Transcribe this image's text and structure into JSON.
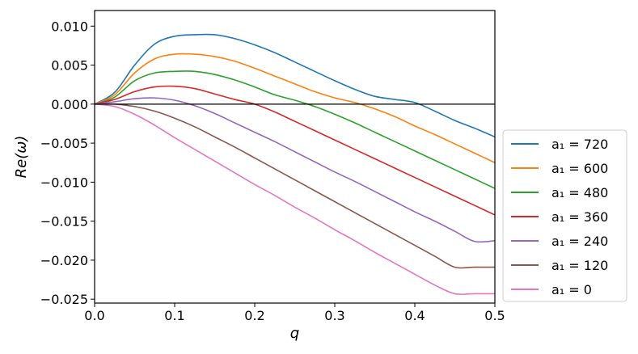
{
  "chart_data": {
    "type": "line",
    "title": "",
    "xlabel": "q",
    "ylabel": "Re(ω)",
    "xlim": [
      0.0,
      0.5
    ],
    "ylim": [
      -0.0255,
      0.012
    ],
    "xticks": [
      "0.0",
      "0.1",
      "0.2",
      "0.3",
      "0.4",
      "0.5"
    ],
    "xtick_values": [
      0.0,
      0.1,
      0.2,
      0.3,
      0.4,
      0.5
    ],
    "yticks": [
      "0.010",
      "0.005",
      "0.000",
      "−0.005",
      "−0.010",
      "−0.015",
      "−0.020",
      "−0.025"
    ],
    "ytick_values": [
      0.01,
      0.005,
      0.0,
      -0.005,
      -0.01,
      -0.015,
      -0.02,
      -0.025
    ],
    "grid": false,
    "legend_position": "outside-right",
    "reference_line": 0.0,
    "x": [
      0.0,
      0.025,
      0.05,
      0.075,
      0.1,
      0.125,
      0.15,
      0.175,
      0.2,
      0.225,
      0.25,
      0.275,
      0.3,
      0.325,
      0.35,
      0.375,
      0.4,
      0.425,
      0.45,
      0.475,
      0.5
    ],
    "series": [
      {
        "name": "a₁ = 720",
        "color": "#1f77b4",
        "values": [
          0.0,
          0.0015,
          0.005,
          0.0077,
          0.0087,
          0.0089,
          0.0089,
          0.0084,
          0.0076,
          0.0066,
          0.0054,
          0.0042,
          0.003,
          0.0019,
          0.001,
          0.0006,
          0.0002,
          -0.0009,
          -0.0021,
          -0.0031,
          -0.0042
        ]
      },
      {
        "name": "a₁ = 600",
        "color": "#ff7f0e",
        "values": [
          0.0,
          0.0012,
          0.004,
          0.0058,
          0.0064,
          0.0064,
          0.0061,
          0.0055,
          0.0046,
          0.0036,
          0.0026,
          0.0016,
          0.0008,
          0.0002,
          -0.0006,
          -0.0016,
          -0.0028,
          -0.0039,
          -0.0051,
          -0.0063,
          -0.0075
        ]
      },
      {
        "name": "a₁ = 480",
        "color": "#2ca02c",
        "values": [
          0.0,
          0.0009,
          0.003,
          0.004,
          0.0042,
          0.0042,
          0.0038,
          0.0031,
          0.0022,
          0.0012,
          0.0005,
          -0.0003,
          -0.0013,
          -0.0024,
          -0.0036,
          -0.0048,
          -0.006,
          -0.0072,
          -0.0084,
          -0.0096,
          -0.0108
        ]
      },
      {
        "name": "a₁ = 360",
        "color": "#d62728",
        "values": [
          0.0,
          0.0006,
          0.0016,
          0.0022,
          0.0023,
          0.002,
          0.0013,
          0.0006,
          0.0,
          -0.001,
          -0.0022,
          -0.0034,
          -0.0046,
          -0.0058,
          -0.007,
          -0.0082,
          -0.0094,
          -0.0106,
          -0.0118,
          -0.013,
          -0.0142
        ]
      },
      {
        "name": "a₁ = 240",
        "color": "#9467bd",
        "values": [
          0.0,
          0.0003,
          0.0007,
          0.0008,
          0.0005,
          -0.0002,
          -0.0012,
          -0.0024,
          -0.0036,
          -0.0048,
          -0.0061,
          -0.0074,
          -0.0087,
          -0.0099,
          -0.0112,
          -0.0125,
          -0.0138,
          -0.015,
          -0.0163,
          -0.0176,
          -0.0175
        ]
      },
      {
        "name": "a₁ = 120",
        "color": "#8c564b",
        "values": [
          0.0,
          0.0,
          -0.0003,
          -0.0009,
          -0.0018,
          -0.0029,
          -0.0042,
          -0.0055,
          -0.0069,
          -0.0083,
          -0.0097,
          -0.0111,
          -0.0125,
          -0.0139,
          -0.0153,
          -0.0167,
          -0.0181,
          -0.0195,
          -0.0209,
          -0.0209,
          -0.0209
        ]
      },
      {
        "name": "a₁ = 0",
        "color": "#e377c2",
        "values": [
          0.0,
          -0.0003,
          -0.0013,
          -0.0027,
          -0.0043,
          -0.0058,
          -0.0073,
          -0.0088,
          -0.0103,
          -0.0117,
          -0.0132,
          -0.0146,
          -0.0161,
          -0.0175,
          -0.019,
          -0.0204,
          -0.0218,
          -0.0232,
          -0.0243,
          -0.0243,
          -0.0243
        ]
      }
    ]
  }
}
